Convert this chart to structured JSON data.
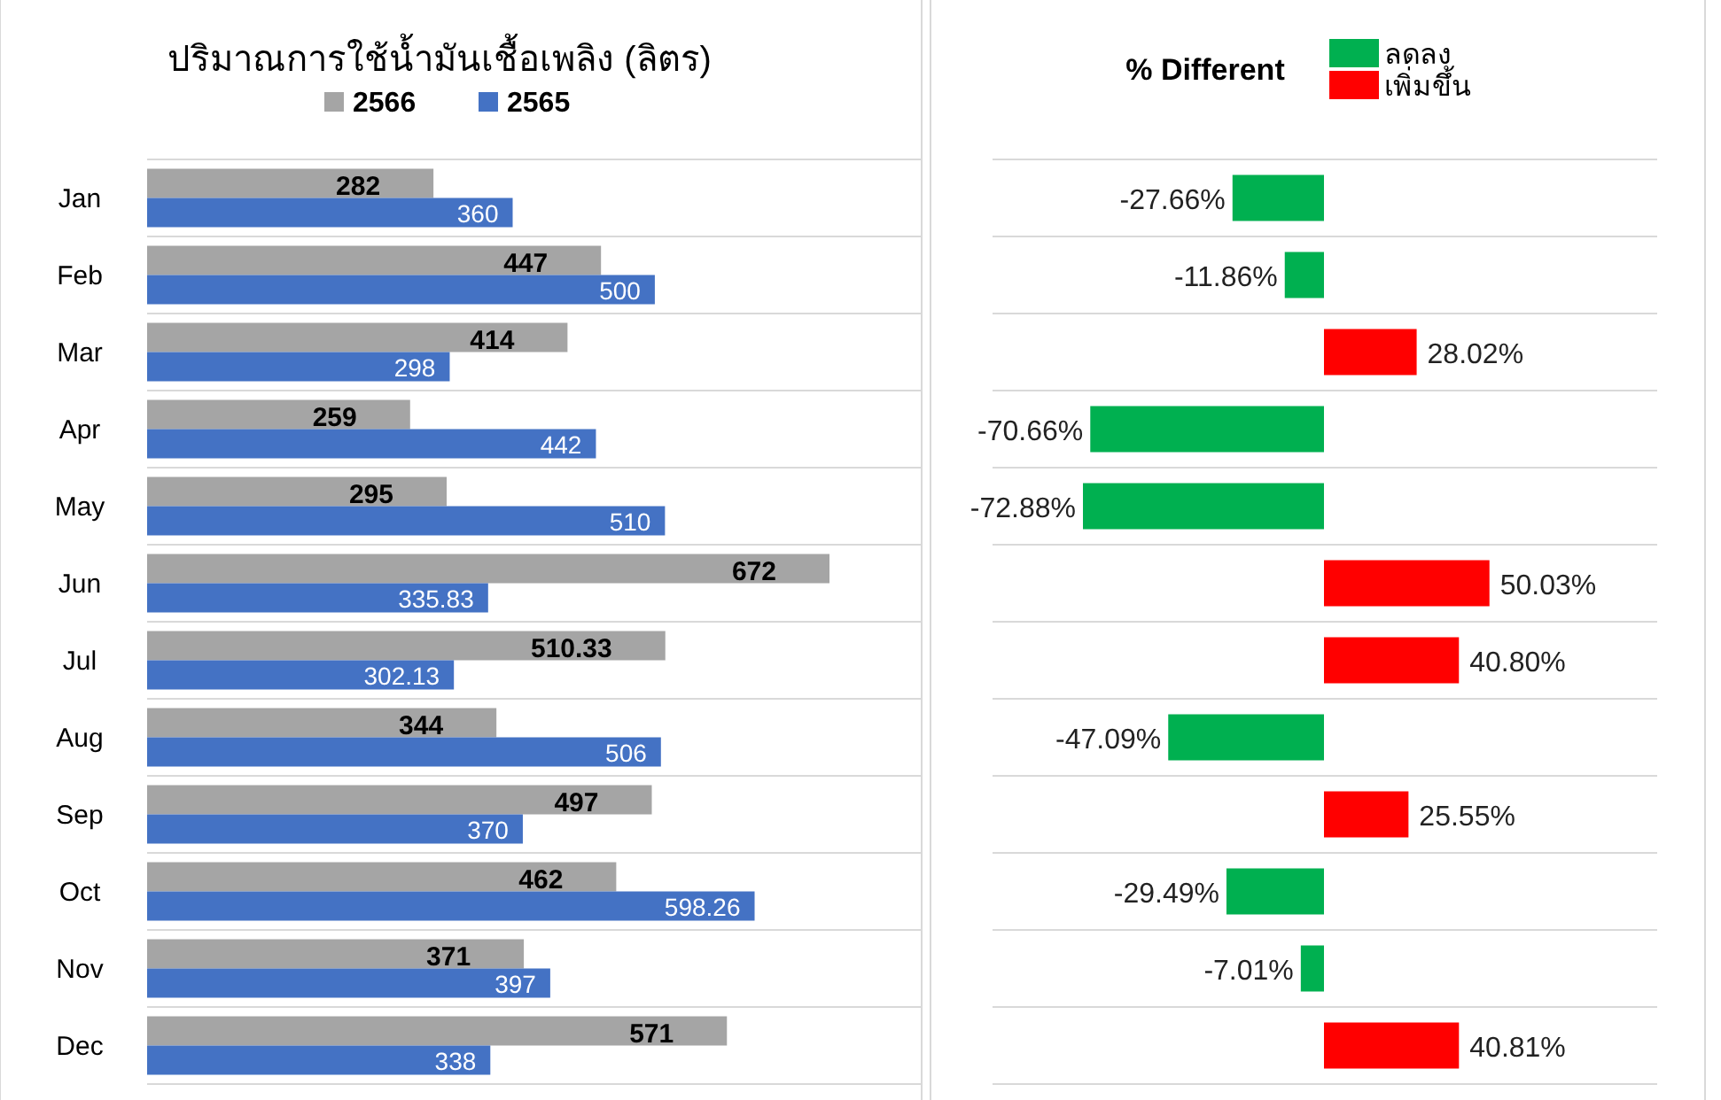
{
  "chart_data": [
    {
      "type": "bar",
      "orientation": "horizontal",
      "title": "ปริมาณการใช้น้ำมันเชื้อเพลิง (ลิตร)",
      "categories": [
        "Jan",
        "Feb",
        "Mar",
        "Apr",
        "May",
        "Jun",
        "Jul",
        "Aug",
        "Sep",
        "Oct",
        "Nov",
        "Dec"
      ],
      "series": [
        {
          "name": "2566",
          "color": "#a5a5a5",
          "values": [
            282,
            447,
            414,
            259,
            295,
            672,
            510.33,
            344,
            497,
            462,
            371,
            571
          ]
        },
        {
          "name": "2565",
          "color": "#4472c4",
          "values": [
            360,
            500,
            298,
            442,
            510,
            335.83,
            302.13,
            506,
            370,
            598.26,
            397,
            338
          ]
        }
      ],
      "data_labels": true,
      "legend": "top",
      "grid": "y",
      "tick_labels": "y"
    },
    {
      "type": "bar",
      "orientation": "horizontal",
      "stacked": true,
      "title": "% Different",
      "categories": [
        null,
        null,
        null,
        null,
        null,
        null,
        null,
        null,
        null,
        null,
        null,
        null
      ],
      "series": [
        {
          "name": "ลดลง",
          "color": "#00b050",
          "values": [
            -27.66,
            -11.86,
            null,
            -70.66,
            -72.88,
            null,
            null,
            -47.09,
            null,
            -29.49,
            -7.01,
            null
          ],
          "value_labels": [
            "-27.66%",
            "-11.86%",
            null,
            "-70.66%",
            "-72.88%",
            null,
            null,
            "-47.09%",
            null,
            "-29.49%",
            "-7.01%",
            null
          ]
        },
        {
          "name": "เพิ่มขึ้น",
          "color": "#ff0000",
          "values": [
            null,
            null,
            28.02,
            null,
            null,
            50.03,
            40.8,
            null,
            25.55,
            null,
            null,
            40.81
          ],
          "value_labels": [
            null,
            null,
            "28.02%",
            null,
            null,
            "50.03%",
            "40.80%",
            null,
            "25.55%",
            null,
            null,
            "40.81%"
          ]
        }
      ],
      "legend": "top right",
      "grid": "y",
      "tick_labels": false
    }
  ]
}
